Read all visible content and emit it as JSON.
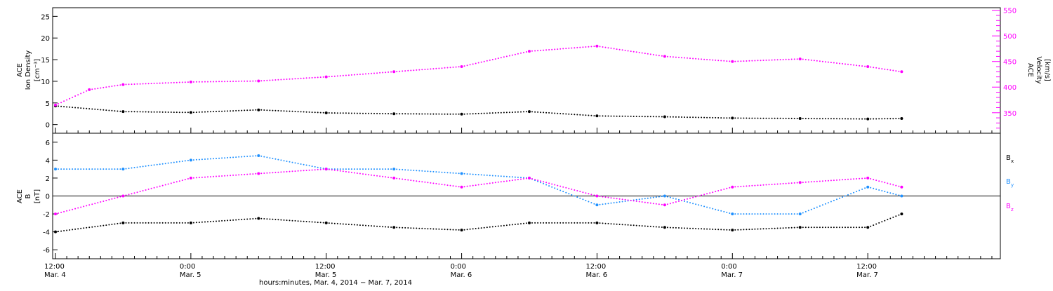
{
  "chart_data": [
    {
      "type": "scatter",
      "panel": "top",
      "ylabel_left": [
        "ACE",
        "Ion Density",
        "[cm⁻³]"
      ],
      "ylabel_right": [
        "ACE",
        "Velocity",
        "[km/s]"
      ],
      "ylim_left": [
        -2,
        27
      ],
      "ylim_right": [
        310,
        555
      ],
      "left_ticks": [
        0,
        5,
        10,
        15,
        20,
        25
      ],
      "right_ticks": [
        350,
        400,
        450,
        500,
        550
      ],
      "series": [
        {
          "axis": "left",
          "color": "#000000",
          "t": [
            0,
            6,
            12,
            18,
            24,
            30,
            36,
            42,
            48,
            54,
            60,
            66,
            72,
            75
          ],
          "values": [
            4.3,
            3.0,
            2.8,
            3.4,
            2.7,
            2.5,
            2.4,
            3.0,
            2.0,
            1.8,
            1.5,
            1.4,
            1.3,
            1.4
          ]
        },
        {
          "axis": "right",
          "color": "#ff00ff",
          "t": [
            0,
            3,
            6,
            12,
            18,
            24,
            30,
            36,
            42,
            48,
            54,
            60,
            66,
            72,
            75
          ],
          "values": [
            365,
            395,
            405,
            410,
            412,
            420,
            430,
            440,
            470,
            480,
            460,
            450,
            455,
            440,
            430
          ]
        }
      ]
    },
    {
      "type": "scatter",
      "panel": "bottom",
      "ylabel_left": [
        "ACE",
        "B",
        "[nT]"
      ],
      "ylim": [
        -7,
        7
      ],
      "ticks": [
        -6,
        -4,
        -2,
        0,
        2,
        4,
        6
      ],
      "zero_line": true,
      "legend_position": "right",
      "series": [
        {
          "name": "Bx",
          "color": "#000000",
          "t": [
            0,
            6,
            12,
            18,
            24,
            30,
            36,
            42,
            48,
            54,
            60,
            66,
            72,
            75
          ],
          "values": [
            -4,
            -3,
            -3,
            -2.5,
            -3,
            -3.5,
            -3.8,
            -3,
            -3,
            -3.5,
            -3.8,
            -3.5,
            -3.5,
            -2
          ]
        },
        {
          "name": "By",
          "color": "#1e90ff",
          "t": [
            0,
            6,
            12,
            18,
            24,
            30,
            36,
            42,
            48,
            54,
            60,
            66,
            72,
            75
          ],
          "values": [
            3,
            3,
            4,
            4.5,
            3,
            3,
            2.5,
            2,
            -1,
            0,
            -2,
            -2,
            1,
            0
          ]
        },
        {
          "name": "Bz",
          "color": "#ff00ff",
          "t": [
            0,
            6,
            12,
            18,
            24,
            30,
            36,
            42,
            48,
            54,
            60,
            66,
            72,
            75
          ],
          "values": [
            -2,
            0,
            2,
            2.5,
            3,
            2,
            1,
            2,
            0,
            -1,
            1,
            1.5,
            2,
            1
          ]
        }
      ],
      "legend": [
        "B",
        "B",
        "B"
      ],
      "legend_sub": [
        "x",
        "y",
        "z"
      ]
    }
  ],
  "x_axis": {
    "xlim": [
      -0.25,
      83.75
    ],
    "tick_positions": [
      0,
      12,
      24,
      36,
      48,
      60,
      72,
      84
    ],
    "time_labels": [
      "12:00",
      "0:00",
      "12:00",
      "0:00",
      "12:00",
      "0:00",
      "12:00"
    ],
    "date_labels": [
      "Mar. 4",
      "Mar. 5",
      "Mar. 5",
      "Mar. 6",
      "Mar. 6",
      "Mar. 7",
      "Mar. 7"
    ],
    "title": "hours:minutes, Mar. 4, 2014 − Mar. 7, 2014",
    "minor_step": 1
  }
}
